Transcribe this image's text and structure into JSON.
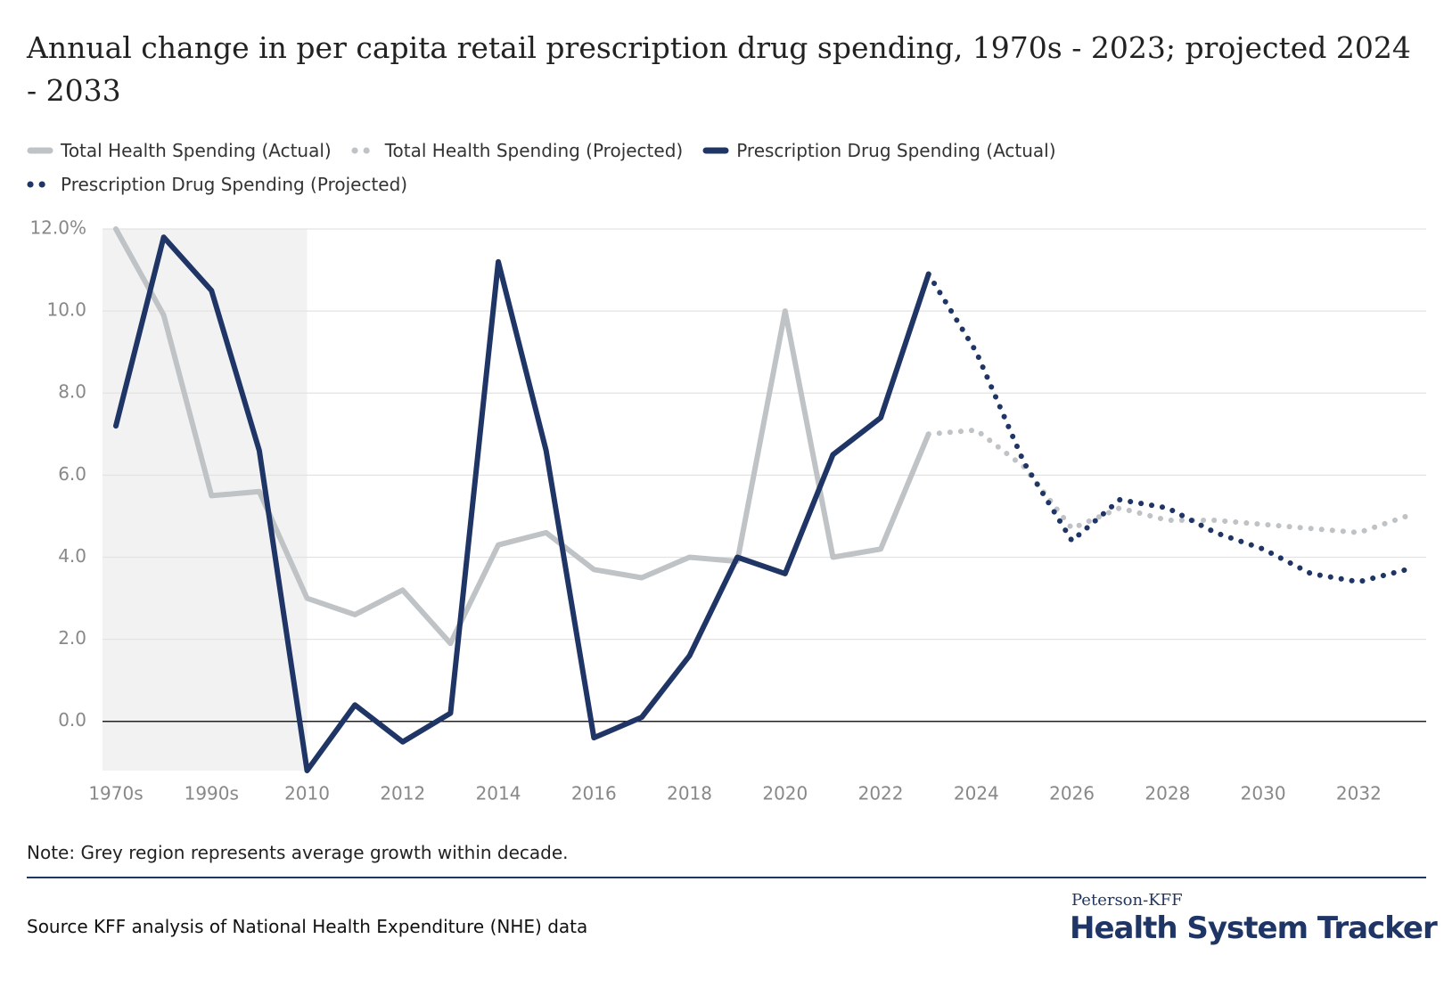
{
  "title": "Annual change in per capita retail prescription drug spending, 1970s - 2023; projected 2024 - 2033",
  "chart_data": {
    "type": "line",
    "categories": [
      "1970s",
      null,
      "1990s",
      null,
      "2010",
      null,
      "2012",
      null,
      "2014",
      null,
      "2016",
      null,
      "2018",
      null,
      "2020",
      null,
      "2022",
      null,
      "2024",
      null,
      "2026",
      null,
      "2028",
      null,
      "2030",
      null,
      "2032",
      null
    ],
    "series": [
      {
        "name": "Total Health Spending (Actual)",
        "color": "#bfc3c6",
        "style": "solid",
        "values": [
          12.0,
          9.9,
          5.5,
          5.6,
          3.0,
          2.6,
          3.2,
          1.9,
          4.3,
          4.6,
          3.7,
          3.5,
          4.0,
          3.9,
          10.0,
          4.0,
          4.2,
          7.0,
          null,
          null,
          null,
          null,
          null,
          null,
          null,
          null,
          null,
          null
        ]
      },
      {
        "name": "Total Health Spending (Projected)",
        "color": "#bfc3c6",
        "style": "dotted",
        "values": [
          null,
          null,
          null,
          null,
          null,
          null,
          null,
          null,
          null,
          null,
          null,
          null,
          null,
          null,
          null,
          null,
          null,
          7.0,
          7.1,
          6.2,
          4.7,
          5.2,
          4.9,
          4.9,
          4.8,
          4.7,
          4.6,
          5.0
        ]
      },
      {
        "name": "Prescription Drug Spending (Actual)",
        "color": "#1f3566",
        "style": "solid",
        "values": [
          7.2,
          11.8,
          10.5,
          6.6,
          -1.2,
          0.4,
          -0.5,
          0.2,
          11.2,
          6.6,
          -0.4,
          0.1,
          1.6,
          4.0,
          3.6,
          6.5,
          7.4,
          10.9,
          null,
          null,
          null,
          null,
          null,
          null,
          null,
          null,
          null,
          null
        ]
      },
      {
        "name": "Prescription Drug Spending (Projected)",
        "color": "#1f3566",
        "style": "dotted",
        "values": [
          null,
          null,
          null,
          null,
          null,
          null,
          null,
          null,
          null,
          null,
          null,
          null,
          null,
          null,
          null,
          null,
          null,
          10.9,
          9.0,
          6.3,
          4.4,
          5.4,
          5.2,
          4.6,
          4.2,
          3.6,
          3.4,
          3.7
        ]
      }
    ],
    "ylim": [
      -1.2,
      12
    ],
    "yticks": [
      {
        "value": 0,
        "label": "0.0"
      },
      {
        "value": 2,
        "label": "2.0"
      },
      {
        "value": 4,
        "label": "4.0"
      },
      {
        "value": 6,
        "label": "6.0"
      },
      {
        "value": 8,
        "label": "8.0"
      },
      {
        "value": 10,
        "label": "10.0"
      },
      {
        "value": 12,
        "label": "12.0%"
      }
    ],
    "grid": true
  },
  "note": "Note: Grey region represents average growth within decade.",
  "source": "Source KFF analysis of National Health Expenditure (NHE) data",
  "logo": {
    "top": "Peterson-KFF",
    "bottom": "Health System Tracker"
  }
}
